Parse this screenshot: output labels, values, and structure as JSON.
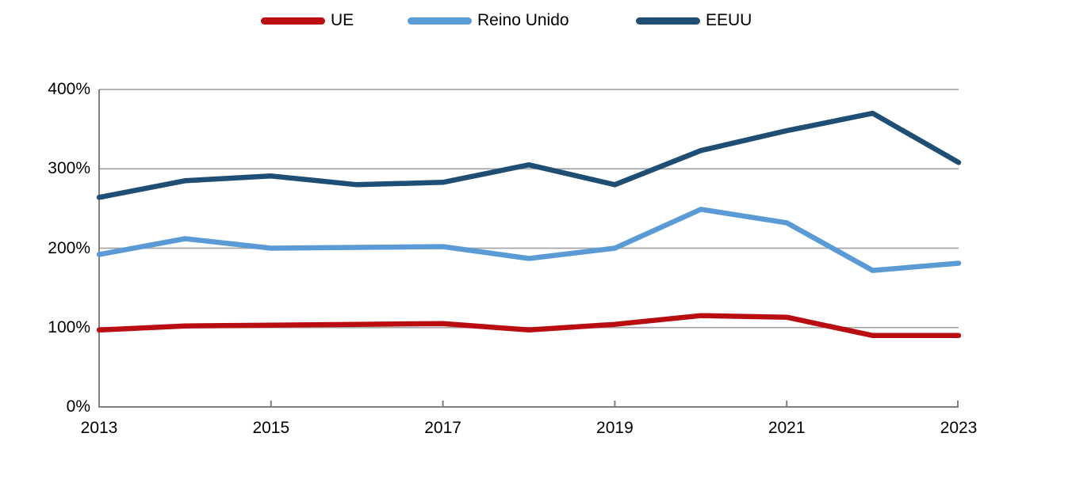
{
  "chart_data": {
    "type": "line",
    "title": "",
    "xlabel": "",
    "ylabel": "",
    "x": [
      2013,
      2014,
      2015,
      2016,
      2017,
      2018,
      2019,
      2020,
      2021,
      2022,
      2023
    ],
    "series": [
      {
        "name": "UE",
        "color": "#B90D12",
        "values": [
          97,
          102,
          103,
          104,
          105,
          97,
          104,
          115,
          113,
          90,
          90
        ]
      },
      {
        "name": "Reino Unido",
        "color": "#5B9BD5",
        "values": [
          192,
          212,
          200,
          201,
          202,
          187,
          200,
          249,
          232,
          172,
          181
        ]
      },
      {
        "name": "EEUU",
        "color": "#1F4E74",
        "values": [
          264,
          285,
          291,
          280,
          283,
          305,
          280,
          323,
          348,
          370,
          308
        ]
      }
    ],
    "ylim": [
      0,
      400
    ],
    "yticks": [
      {
        "value": 0,
        "label": "0%"
      },
      {
        "value": 100,
        "label": "100%"
      },
      {
        "value": 200,
        "label": "200%"
      },
      {
        "value": 300,
        "label": "300%"
      },
      {
        "value": 400,
        "label": "400%"
      }
    ],
    "xticks": [
      {
        "value": 2013,
        "label": "2013"
      },
      {
        "value": 2015,
        "label": "2015"
      },
      {
        "value": 2017,
        "label": "2017"
      },
      {
        "value": 2019,
        "label": "2019"
      },
      {
        "value": 2021,
        "label": "2021"
      },
      {
        "value": 2023,
        "label": "2023"
      }
    ],
    "grid": "horizontal",
    "legend_position": "top"
  },
  "style": {
    "grid_color": "#A6A6A6",
    "axis_color": "#7F7F7F",
    "text_color": "#000000",
    "background": "#FFFFFF"
  }
}
